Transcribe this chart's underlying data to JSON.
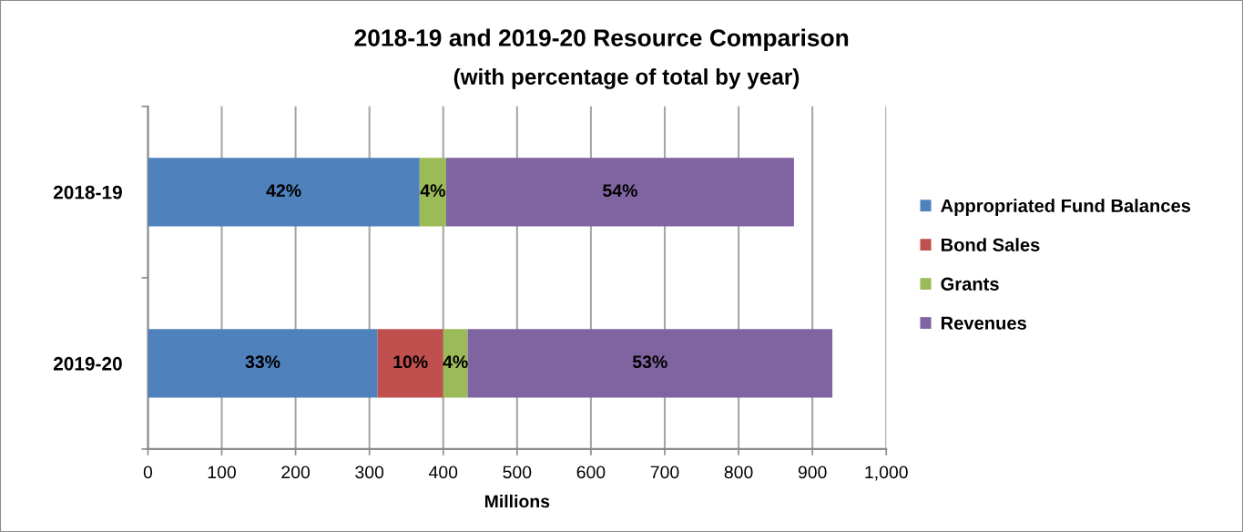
{
  "chart_data": {
    "type": "bar",
    "orientation": "horizontal",
    "stacked": true,
    "title": "2018-19 and 2019-20 Resource Comparison",
    "subtitle": "(with percentage of total by year)",
    "xlabel": "Millions",
    "categories": [
      "2018-19",
      "2019-20"
    ],
    "series": [
      {
        "name": "Appropriated Fund Balances",
        "color": "#4f81bd",
        "values": [
          368,
          311
        ]
      },
      {
        "name": "Bond Sales",
        "color": "#c0504d",
        "values": [
          null,
          89
        ]
      },
      {
        "name": "Grants",
        "color": "#9bbb59",
        "values": [
          36,
          33
        ]
      },
      {
        "name": "Revenues",
        "color": "#8064a2",
        "values": [
          471,
          494
        ]
      }
    ],
    "annotations": [
      "42%",
      "4%",
      "54%",
      "33%",
      "10%",
      "4%",
      "53%"
    ],
    "xlim": [
      0,
      1000
    ],
    "xticks": [
      0,
      100,
      200,
      300,
      400,
      500,
      600,
      700,
      800,
      900,
      {
        "value": 1000,
        "label": "1,000"
      }
    ],
    "grid": "x",
    "legend": "right"
  }
}
